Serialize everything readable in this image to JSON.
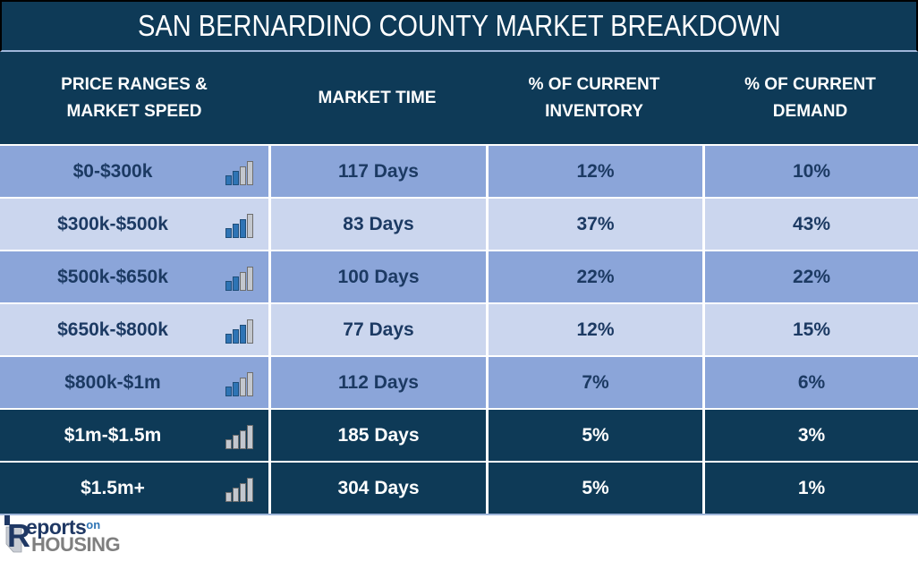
{
  "title": "SAN BERNARDINO COUNTY MARKET BREAKDOWN",
  "table": {
    "columns": [
      "PRICE RANGES & MARKET SPEED",
      "MARKET TIME",
      "% OF CURRENT INVENTORY",
      "% OF CURRENT DEMAND"
    ],
    "speed_bar_heights": [
      11,
      16,
      21,
      27
    ],
    "rows": [
      {
        "price_range": "$0-$300k",
        "speed_blue_bars": 2,
        "market_time": "117 Days",
        "inventory": "12%",
        "demand": "10%",
        "style": "medium"
      },
      {
        "price_range": "$300k-$500k",
        "speed_blue_bars": 3,
        "market_time": "83 Days",
        "inventory": "37%",
        "demand": "43%",
        "style": "light"
      },
      {
        "price_range": "$500k-$650k",
        "speed_blue_bars": 2,
        "market_time": "100 Days",
        "inventory": "22%",
        "demand": "22%",
        "style": "medium"
      },
      {
        "price_range": "$650k-$800k",
        "speed_blue_bars": 3,
        "market_time": "77 Days",
        "inventory": "12%",
        "demand": "15%",
        "style": "light"
      },
      {
        "price_range": "$800k-$1m",
        "speed_blue_bars": 2,
        "market_time": "112 Days",
        "inventory": "7%",
        "demand": "6%",
        "style": "medium"
      },
      {
        "price_range": "$1m-$1.5m",
        "speed_blue_bars": 0,
        "market_time": "185 Days",
        "inventory": "5%",
        "demand": "3%",
        "style": "dark"
      },
      {
        "price_range": "$1.5m+",
        "speed_blue_bars": 0,
        "market_time": "304 Days",
        "inventory": "5%",
        "demand": "1%",
        "style": "dark"
      }
    ]
  },
  "chart_data": {
    "type": "table",
    "title": "SAN BERNARDINO COUNTY MARKET BREAKDOWN",
    "columns": [
      "PRICE RANGES & MARKET SPEED",
      "MARKET TIME",
      "% OF CURRENT INVENTORY",
      "% OF CURRENT DEMAND"
    ],
    "rows": [
      [
        "$0-$300k",
        "117 Days",
        "12%",
        "10%"
      ],
      [
        "$300k-$500k",
        "83 Days",
        "37%",
        "43%"
      ],
      [
        "$500k-$650k",
        "100 Days",
        "22%",
        "22%"
      ],
      [
        "$650k-$800k",
        "77 Days",
        "12%",
        "15%"
      ],
      [
        "$800k-$1m",
        "112 Days",
        "7%",
        "6%"
      ],
      [
        "$1m-$1.5m",
        "185 Days",
        "5%",
        "3%"
      ],
      [
        "$1.5m+",
        "304 Days",
        "5%",
        "1%"
      ]
    ],
    "market_speed_blue_bars_of_4": [
      2,
      3,
      2,
      3,
      2,
      0,
      0
    ]
  },
  "logo": {
    "r": "R",
    "eports": "eports",
    "on": "on",
    "housing": "HOUSING"
  },
  "colors": {
    "header_bg": "#0E3A57",
    "row_medium": "#8BA5D9",
    "row_light": "#CBD6EE",
    "row_dark": "#0E3A57",
    "text_dark": "#1C3A63",
    "text_light": "#FFFFFF",
    "divider_line": "#9FB6D9",
    "bar_blue": "#2E74B5",
    "bar_gray": "#C3C7CE"
  }
}
